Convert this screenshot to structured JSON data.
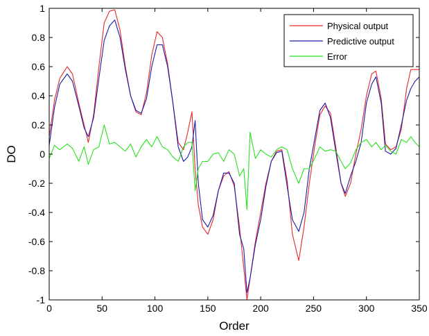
{
  "chart_data": {
    "type": "line",
    "title": "",
    "xlabel": "Order",
    "ylabel": "DO",
    "xlim": [
      0,
      350
    ],
    "ylim": [
      -1,
      1
    ],
    "x_ticks": [
      0,
      50,
      100,
      150,
      200,
      250,
      300,
      350
    ],
    "y_ticks": [
      -1,
      -0.8,
      -0.6,
      -0.4,
      -0.2,
      0,
      0.2,
      0.4,
      0.6,
      0.8,
      1
    ],
    "x_tick_labels": [
      "0",
      "50",
      "100",
      "150",
      "200",
      "250",
      "300",
      "350"
    ],
    "y_tick_labels": [
      "-1",
      "-0.8",
      "-0.6",
      "-0.4",
      "-0.2",
      "0",
      "0.2",
      "0.4",
      "0.6",
      "0.8",
      "1"
    ],
    "grid": false,
    "legend_position": "top-right",
    "series": [
      {
        "name": "Physical output",
        "color": "#e8262a",
        "x": [
          0,
          5,
          10,
          17,
          22,
          28,
          33,
          37,
          42,
          47,
          52,
          57,
          62,
          67,
          72,
          77,
          82,
          87,
          92,
          97,
          102,
          107,
          112,
          117,
          122,
          127,
          131,
          135,
          138,
          141,
          145,
          150,
          155,
          160,
          165,
          170,
          175,
          180,
          184,
          187,
          190,
          195,
          200,
          205,
          210,
          215,
          220,
          225,
          230,
          236,
          241,
          246,
          251,
          256,
          261,
          266,
          271,
          276,
          280,
          285,
          290,
          295,
          300,
          305,
          309,
          314,
          318,
          323,
          328,
          333,
          338,
          342,
          346,
          350
        ],
        "y": [
          0.12,
          0.37,
          0.52,
          0.6,
          0.55,
          0.35,
          0.2,
          0.08,
          0.27,
          0.6,
          0.9,
          0.98,
          0.99,
          0.85,
          0.6,
          0.4,
          0.29,
          0.27,
          0.42,
          0.68,
          0.84,
          0.8,
          0.62,
          0.35,
          0.08,
          0.03,
          0.15,
          0.29,
          -0.1,
          -0.35,
          -0.5,
          -0.55,
          -0.45,
          -0.25,
          -0.15,
          -0.12,
          -0.22,
          -0.5,
          -0.78,
          -1.0,
          -0.85,
          -0.6,
          -0.4,
          -0.2,
          -0.05,
          0.02,
          0.03,
          -0.18,
          -0.55,
          -0.73,
          -0.5,
          -0.2,
          0.05,
          0.27,
          0.33,
          0.28,
          0.05,
          -0.2,
          -0.29,
          -0.2,
          0.0,
          0.17,
          0.4,
          0.55,
          0.57,
          0.38,
          0.07,
          0.03,
          0.05,
          0.17,
          0.45,
          0.58,
          0.58,
          0.58
        ]
      },
      {
        "name": "Predictive output",
        "color": "#1a1aa8",
        "x": [
          0,
          5,
          10,
          17,
          22,
          28,
          33,
          37,
          42,
          47,
          52,
          57,
          62,
          67,
          72,
          77,
          82,
          87,
          92,
          97,
          102,
          107,
          112,
          117,
          122,
          127,
          131,
          135,
          138,
          141,
          145,
          150,
          155,
          160,
          165,
          170,
          175,
          180,
          184,
          187,
          190,
          195,
          200,
          205,
          210,
          215,
          220,
          225,
          230,
          236,
          241,
          246,
          251,
          256,
          261,
          266,
          271,
          276,
          280,
          285,
          290,
          295,
          300,
          305,
          309,
          314,
          318,
          323,
          328,
          333,
          338,
          342,
          346,
          350
        ],
        "y": [
          0.06,
          0.32,
          0.48,
          0.55,
          0.5,
          0.33,
          0.18,
          0.12,
          0.25,
          0.52,
          0.78,
          0.88,
          0.92,
          0.8,
          0.58,
          0.4,
          0.3,
          0.28,
          0.38,
          0.6,
          0.75,
          0.75,
          0.6,
          0.35,
          0.05,
          -0.05,
          -0.02,
          0.05,
          0.23,
          -0.2,
          -0.45,
          -0.5,
          -0.42,
          -0.25,
          -0.13,
          -0.13,
          -0.2,
          -0.55,
          -0.65,
          -0.95,
          -0.85,
          -0.62,
          -0.45,
          -0.22,
          -0.05,
          0.01,
          0.02,
          -0.22,
          -0.45,
          -0.53,
          -0.4,
          -0.1,
          0.1,
          0.3,
          0.35,
          0.25,
          0.02,
          -0.2,
          -0.27,
          -0.15,
          -0.05,
          0.08,
          0.35,
          0.48,
          0.53,
          0.35,
          0.02,
          0.0,
          0.04,
          0.2,
          0.37,
          0.45,
          0.5,
          0.53
        ]
      },
      {
        "name": "Error",
        "color": "#27e01f",
        "x": [
          0,
          5,
          10,
          17,
          22,
          28,
          33,
          37,
          42,
          47,
          52,
          57,
          62,
          67,
          72,
          77,
          82,
          87,
          92,
          97,
          102,
          107,
          112,
          117,
          122,
          127,
          131,
          135,
          138,
          141,
          145,
          150,
          155,
          160,
          165,
          170,
          175,
          180,
          184,
          187,
          190,
          195,
          200,
          205,
          210,
          215,
          220,
          225,
          230,
          236,
          241,
          246,
          251,
          256,
          261,
          266,
          271,
          276,
          280,
          285,
          290,
          295,
          300,
          305,
          309,
          314,
          318,
          323,
          328,
          333,
          338,
          342,
          346,
          350
        ],
        "y": [
          -0.03,
          0.06,
          0.03,
          0.07,
          0.04,
          -0.05,
          0.05,
          -0.07,
          0.03,
          0.05,
          0.2,
          0.07,
          0.08,
          0.05,
          0.02,
          0.07,
          -0.02,
          0.05,
          0.1,
          0.05,
          0.12,
          0.05,
          0.03,
          -0.02,
          -0.05,
          0.05,
          0.08,
          0.08,
          -0.25,
          -0.1,
          -0.05,
          -0.05,
          0.0,
          0.01,
          -0.05,
          0.03,
          0.0,
          -0.15,
          -0.1,
          -0.38,
          0.15,
          -0.03,
          0.03,
          0.0,
          -0.02,
          0.03,
          0.05,
          0.03,
          -0.1,
          -0.2,
          -0.1,
          -0.1,
          -0.03,
          0.05,
          0.02,
          0.03,
          0.02,
          -0.05,
          -0.1,
          -0.06,
          0.03,
          0.08,
          0.1,
          0.05,
          0.08,
          0.03,
          0.06,
          0.02,
          0.0,
          0.1,
          0.08,
          0.12,
          0.08,
          0.05
        ]
      }
    ]
  }
}
